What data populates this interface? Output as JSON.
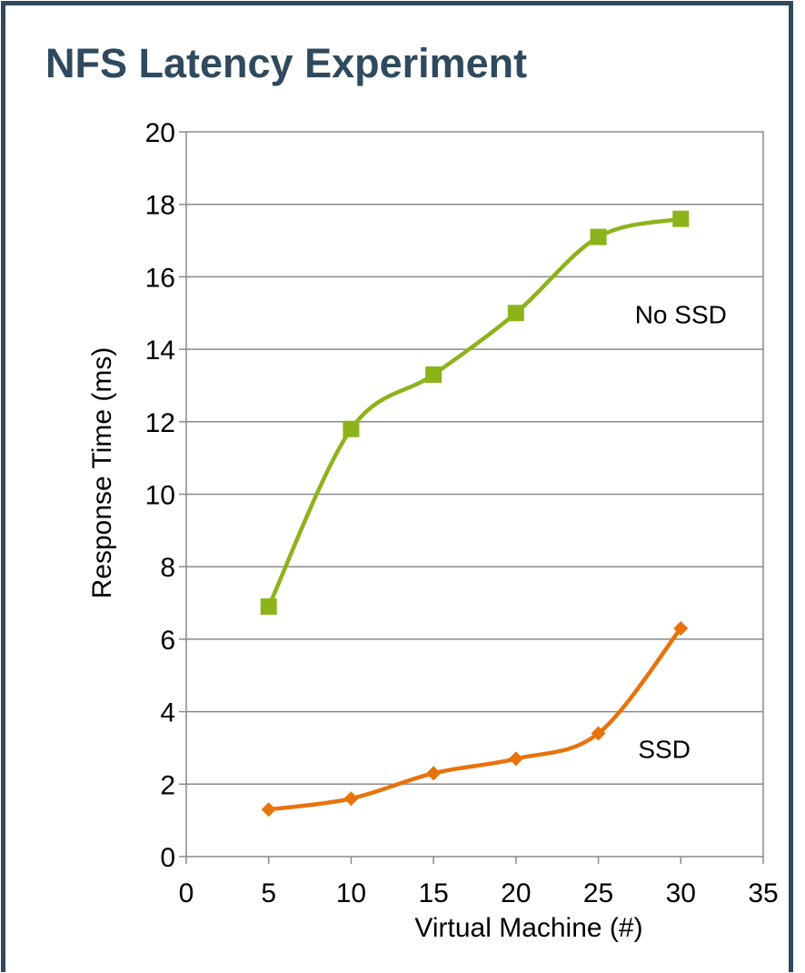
{
  "slide": {
    "title": "NFS Latency Experiment",
    "border_color": "#2f4a5e",
    "title_color": "#2f4a5e"
  },
  "chart_data": {
    "type": "line",
    "xlabel": "Virtual Machine (#)",
    "ylabel": "Response Time (ms)",
    "xlim": [
      0,
      35
    ],
    "ylim": [
      0,
      20
    ],
    "x_ticks": [
      0,
      5,
      10,
      15,
      20,
      25,
      30,
      35
    ],
    "y_ticks": [
      0,
      2,
      4,
      6,
      8,
      10,
      12,
      14,
      16,
      18,
      20
    ],
    "grid": "horizontal",
    "smooth": true,
    "series": [
      {
        "name": "No SSD",
        "color": "#8db31a",
        "marker": "square",
        "x": [
          5,
          10,
          15,
          20,
          25,
          30
        ],
        "y": [
          6.9,
          11.8,
          13.3,
          15.0,
          17.1,
          17.6
        ]
      },
      {
        "name": "SSD",
        "color": "#e8730c",
        "marker": "diamond",
        "x": [
          5,
          10,
          15,
          20,
          25,
          30
        ],
        "y": [
          1.3,
          1.6,
          2.3,
          2.7,
          3.4,
          6.3
        ]
      }
    ],
    "annotations": [
      {
        "text": "No SSD",
        "x": 30,
        "y": 15.0
      },
      {
        "text": "SSD",
        "x": 29,
        "y": 3.0
      }
    ]
  }
}
